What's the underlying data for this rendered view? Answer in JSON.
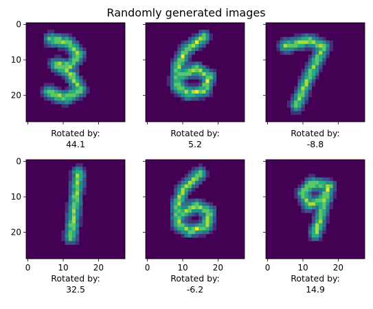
{
  "figure": {
    "title": "Randomly generated images",
    "colors": {
      "background_pixel": "#440154",
      "colormap": [
        "#440154",
        "#472c7a",
        "#3b518b",
        "#2c718e",
        "#21908d",
        "#27ad81",
        "#5cc863",
        "#aadc32",
        "#fde725"
      ]
    }
  },
  "panels": [
    {
      "caption_line1": "Rotated by:",
      "caption_line2": "44.1",
      "digit": "3",
      "rotation": 44.1
    },
    {
      "caption_line1": "Rotated by:",
      "caption_line2": "5.2",
      "digit": "6",
      "rotation": 5.2
    },
    {
      "caption_line1": "Rotated by:",
      "caption_line2": "-8.8",
      "digit": "7",
      "rotation": -8.8
    },
    {
      "caption_line1": "Rotated by:",
      "caption_line2": "32.5",
      "digit": "1",
      "rotation": 32.5
    },
    {
      "caption_line1": "Rotated by:",
      "caption_line2": "-6.2",
      "digit": "6",
      "rotation": -6.2
    },
    {
      "caption_line1": "Rotated by:",
      "caption_line2": "14.9",
      "digit": "9",
      "rotation": 14.9
    }
  ],
  "axes": {
    "xlim": [
      0,
      28
    ],
    "ylim": [
      0,
      28
    ],
    "y_ticks": [
      "0",
      "10",
      "20"
    ],
    "x_ticks": [
      "0",
      "10",
      "20"
    ]
  }
}
